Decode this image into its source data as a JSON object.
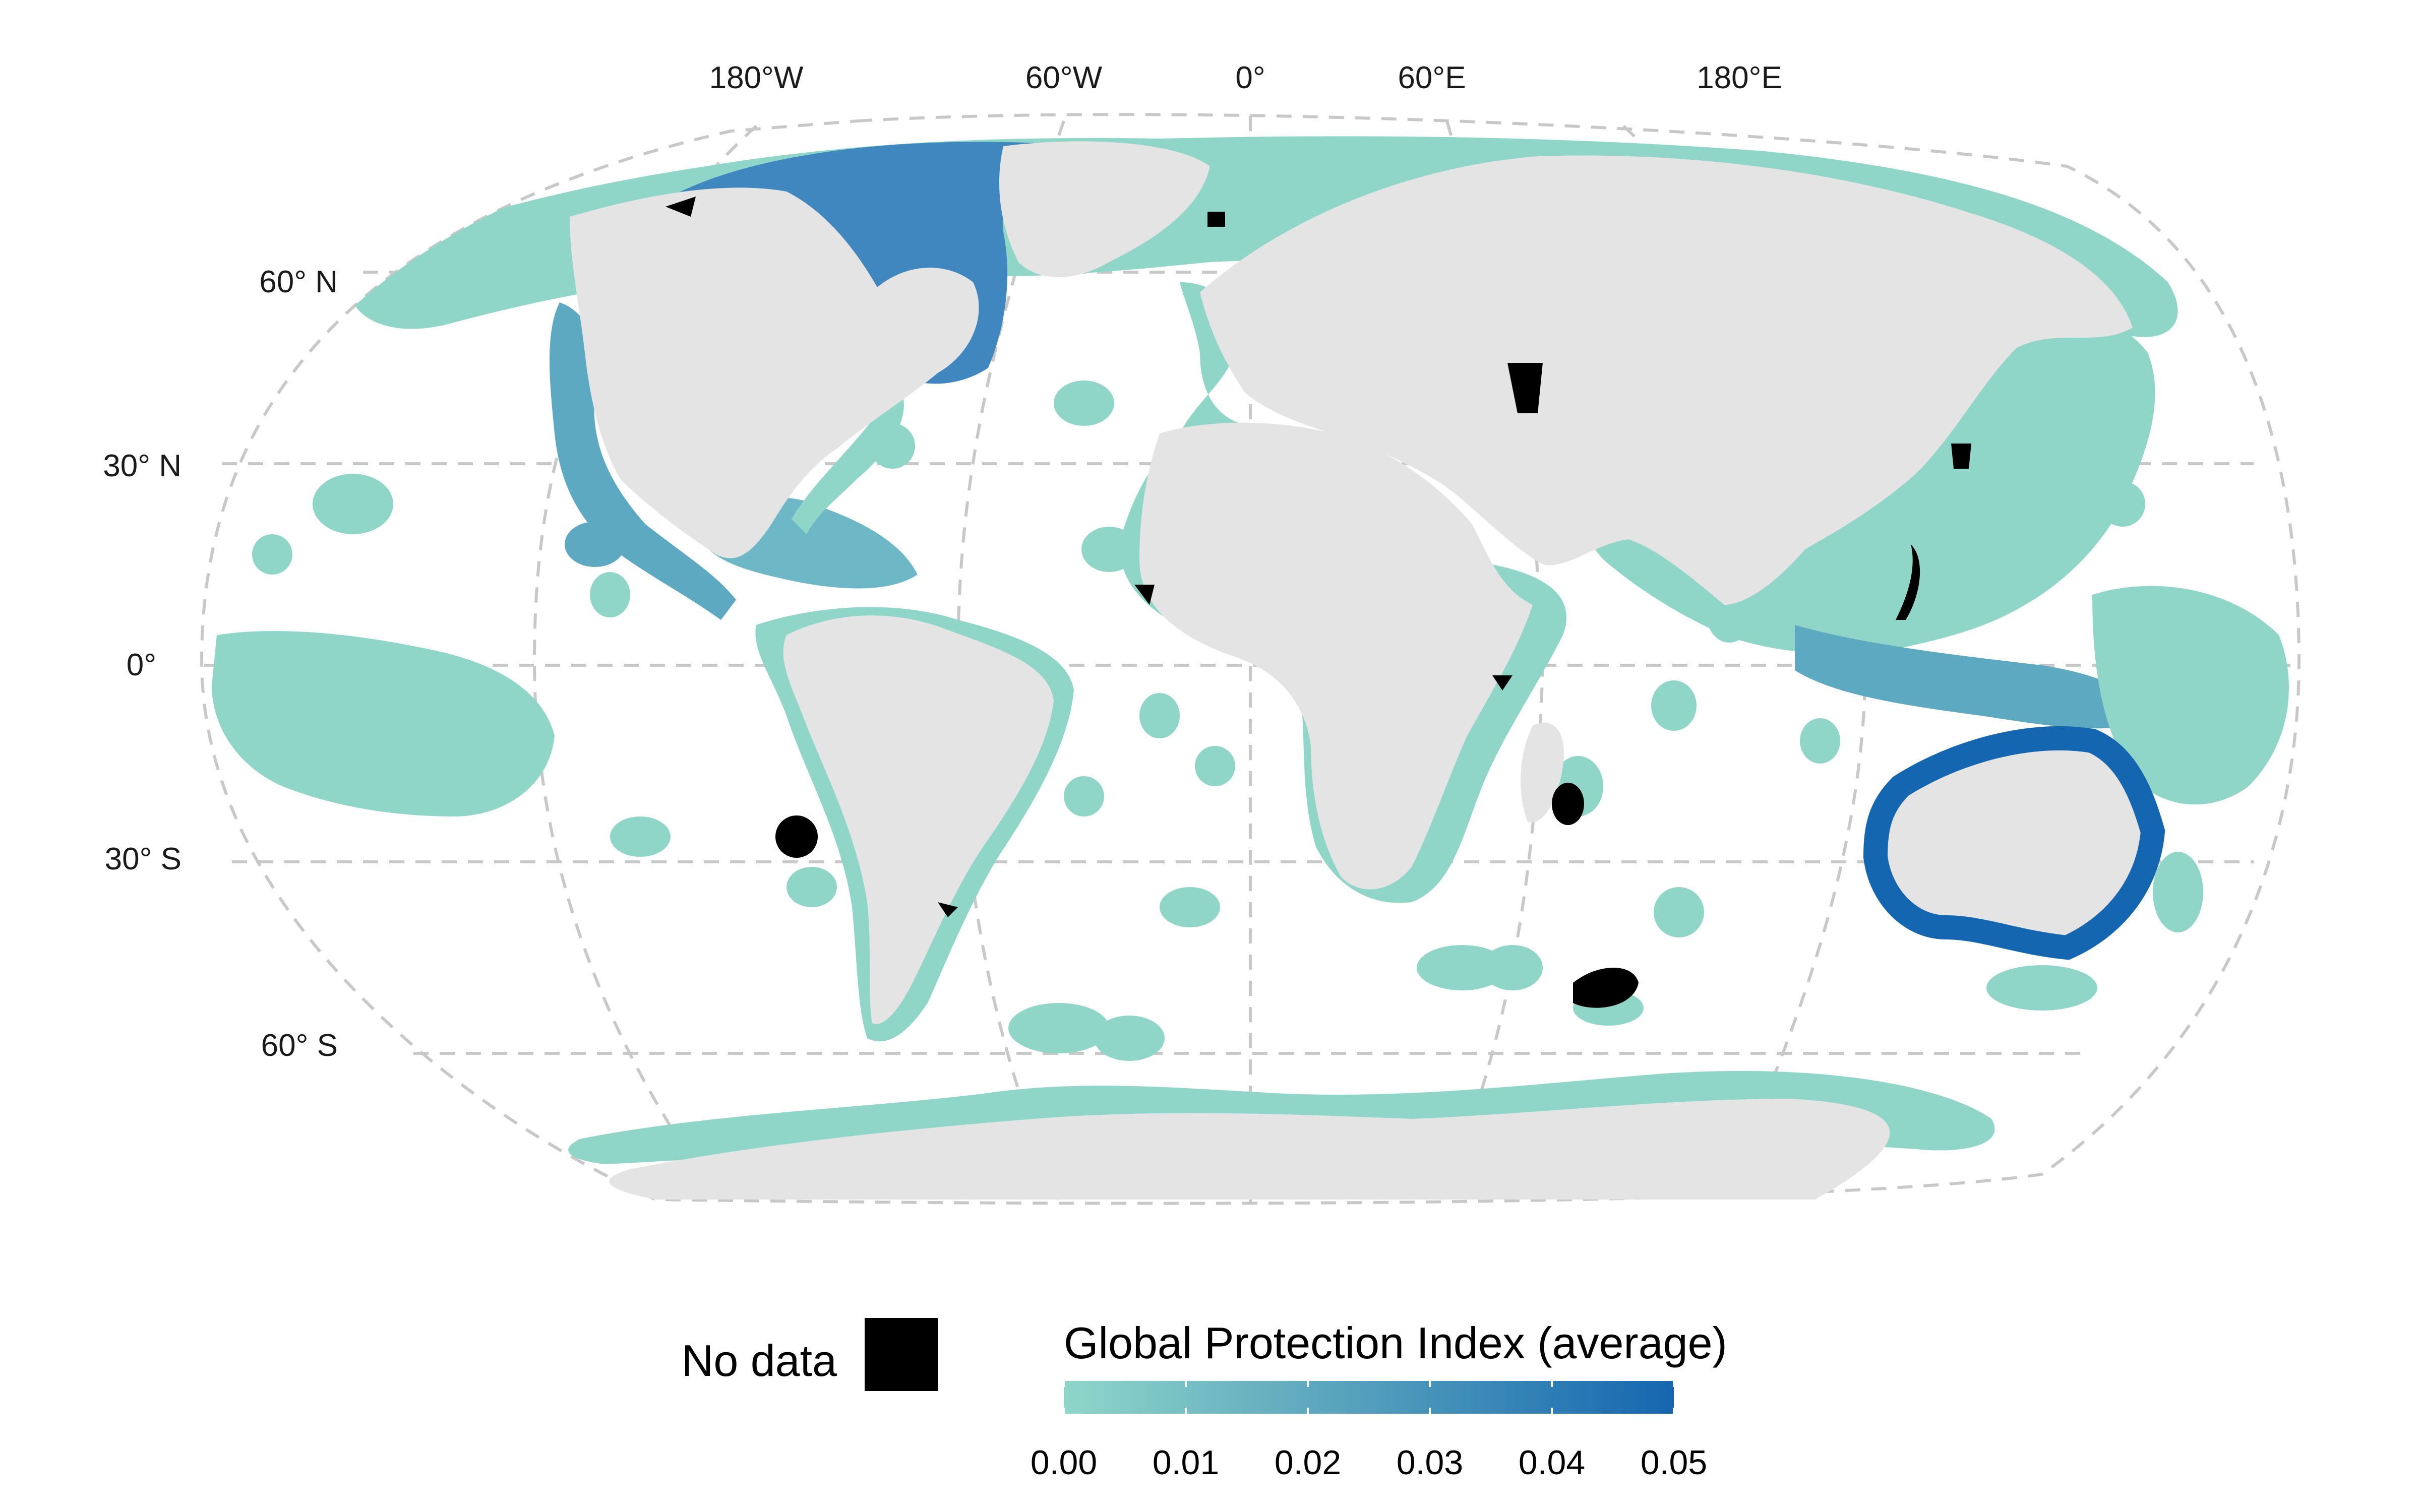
{
  "map": {
    "projection": "Robinson",
    "longitude_labels": [
      "180°W",
      "60°W",
      "0°",
      "60°E",
      "180°E"
    ],
    "latitude_labels": [
      "60° N",
      "30° N",
      "0°",
      "30° S",
      "60° S"
    ]
  },
  "legend": {
    "no_data_label": "No data",
    "no_data_color": "#000000",
    "colorbar_title": "Global Protection Index (average)",
    "colorbar_min": 0.0,
    "colorbar_max": 0.05,
    "colorbar_ticks": [
      "0.00",
      "0.01",
      "0.02",
      "0.03",
      "0.04",
      "0.05"
    ],
    "colorbar_colors": [
      "#8fd6c9",
      "#1566b0"
    ]
  },
  "colors": {
    "land": "#e4e4e4",
    "graticule": "#c8c8c8",
    "low": "#8fd6c9",
    "mid": "#5ea9c2",
    "high": "#1566b0",
    "no_data": "#000000"
  }
}
